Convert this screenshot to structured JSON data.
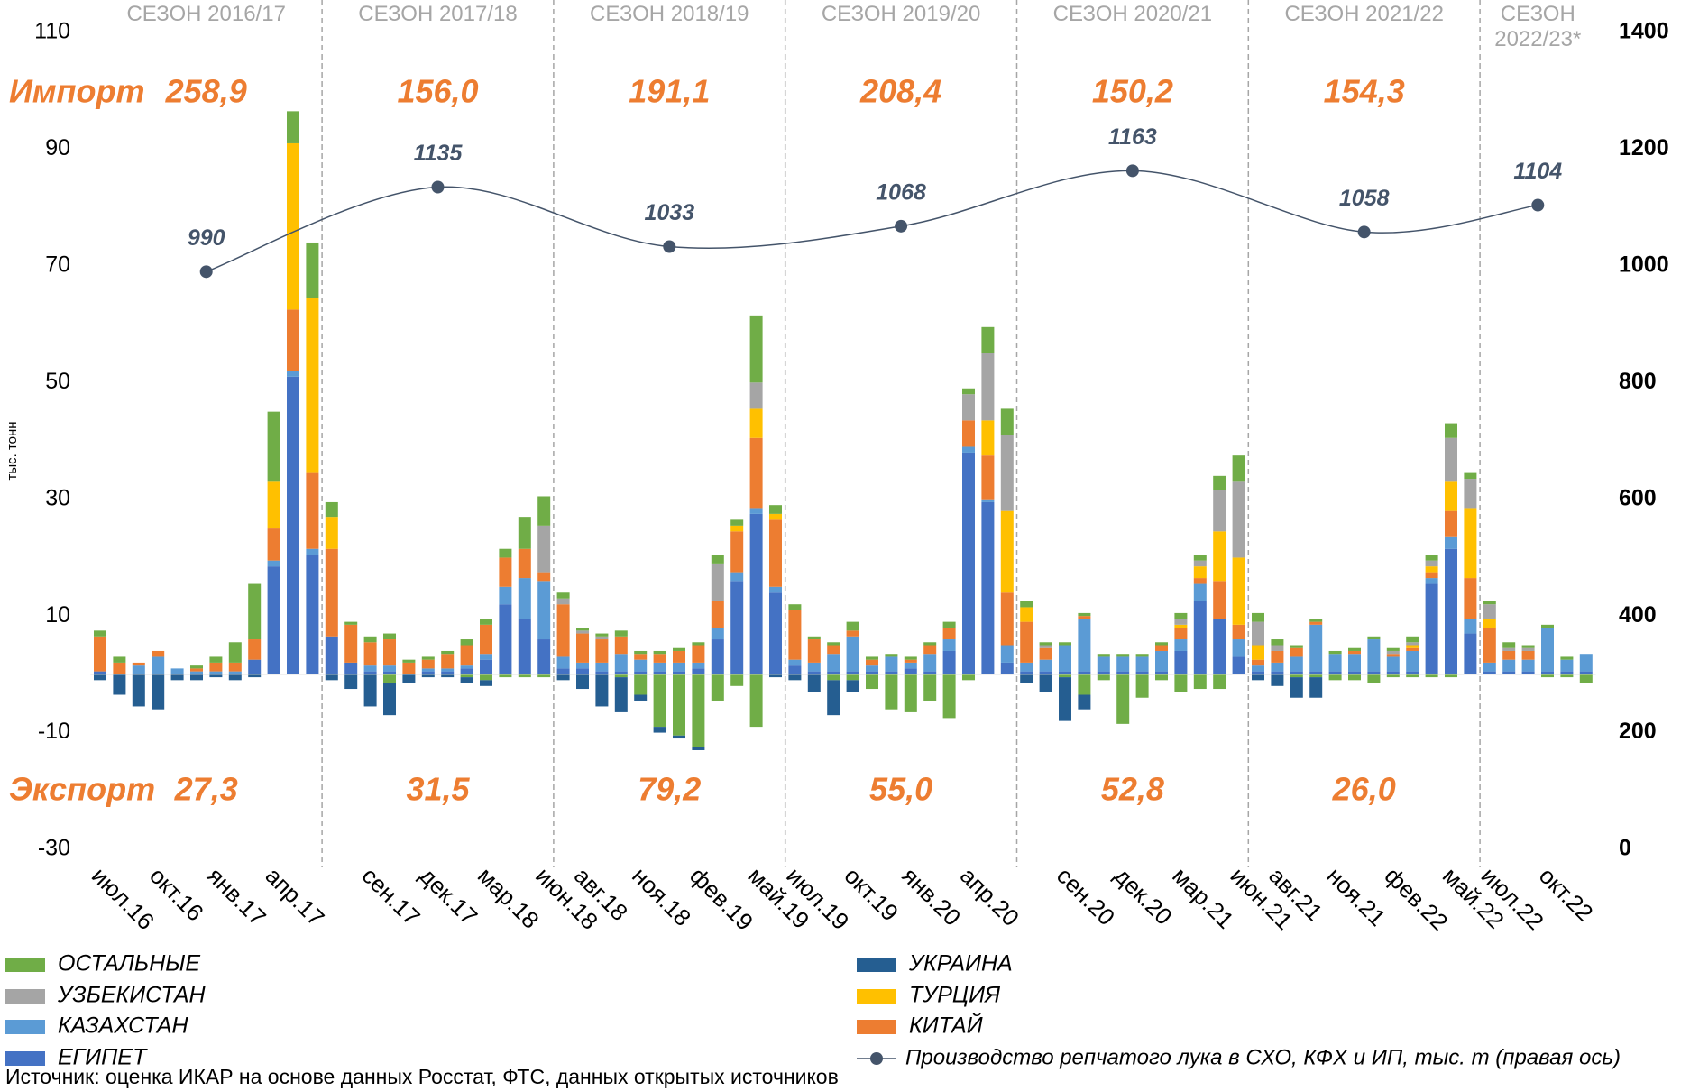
{
  "chart_data": {
    "type": "bar",
    "y_label": "тыс. тонн",
    "import_label": "Импорт",
    "export_label": "Экспорт",
    "source": "Источник: оценка ИКАР на основе данных Росстат, ФТС, данных открытых источников",
    "ylim": [
      -30,
      110
    ],
    "yticks": [
      110,
      90,
      70,
      50,
      30,
      10,
      -10,
      -30
    ],
    "y2lim": [
      0,
      1400
    ],
    "y2ticks": [
      1400,
      1200,
      1000,
      800,
      600,
      400,
      200,
      0
    ],
    "grid": false,
    "categories": [
      "июл.16",
      null,
      null,
      "окт.16",
      null,
      null,
      "янв.17",
      null,
      null,
      "апр.17",
      null,
      null,
      null,
      null,
      "сен.17",
      null,
      null,
      "дек.17",
      null,
      null,
      "мар.18",
      null,
      null,
      "июн.18",
      null,
      "авг.18",
      null,
      null,
      "ноя.18",
      null,
      null,
      "фев.19",
      null,
      null,
      "май.19",
      null,
      "июл.19",
      null,
      null,
      "окт.19",
      null,
      null,
      "янв.20",
      null,
      null,
      "апр.20",
      null,
      null,
      null,
      null,
      "сен.20",
      null,
      null,
      "дек.20",
      null,
      null,
      "мар.21",
      null,
      null,
      "июн.21",
      null,
      "авг.21",
      null,
      null,
      "ноя.21",
      null,
      null,
      "фев.22",
      null,
      null,
      "май.22",
      null,
      "июл.22",
      null,
      null,
      "окт.22",
      null,
      null
    ],
    "series": [
      {
        "name": "ОСТАЛЬНЫЕ",
        "color": "#70ad47",
        "values": [
          1,
          1,
          0,
          0,
          0,
          0.5,
          1,
          3.5,
          9.5,
          12,
          5.5,
          9.5,
          2.5,
          0.5,
          1,
          1,
          0.5,
          0.5,
          0.5,
          1,
          1,
          1.5,
          5.5,
          5,
          1,
          0.5,
          0.5,
          1,
          0.5,
          0.5,
          0.5,
          0.5,
          1.5,
          1,
          11.5,
          1.5,
          1,
          0.5,
          0.5,
          1.5,
          0.5,
          0.5,
          0.5,
          0.5,
          1,
          1,
          4.5,
          4.5,
          1,
          0.5,
          0.5,
          0.5,
          0.5,
          0.5,
          0.5,
          0.5,
          1,
          1,
          2.5,
          4.5,
          1.5,
          1,
          0.5,
          0.5,
          0.5,
          0.5,
          0.5,
          0.5,
          1,
          1,
          2.5,
          1,
          0.5,
          1,
          0.5,
          0.5,
          0.5,
          0
        ],
        "export_values": [
          0,
          0,
          0,
          0,
          0,
          0,
          0,
          0,
          0,
          0,
          0,
          0,
          0,
          0,
          0,
          -1.5,
          0,
          0,
          0,
          -0.5,
          -1,
          -0.5,
          -0.5,
          -0.5,
          0,
          0,
          0,
          -0.5,
          -3.5,
          -9,
          -10.5,
          -12.5,
          -4.5,
          -2,
          -9,
          0,
          0,
          0,
          -1,
          -1,
          -2.5,
          -6,
          -6.5,
          -4.5,
          -7.5,
          -1,
          0,
          0,
          0,
          0,
          -0.5,
          -3.5,
          -1,
          -8.5,
          -4,
          -1,
          -3,
          -2.5,
          -2.5,
          0,
          0,
          0,
          -0.5,
          -0.5,
          -1,
          -1,
          -1.5,
          -0.5,
          -0.5,
          -0.5,
          -0.5,
          0,
          0,
          0,
          0,
          -0.5,
          -0.5,
          -1.5
        ]
      },
      {
        "name": "УЗБЕКИСТАН",
        "color": "#a5a5a5",
        "values": [
          0,
          0,
          0,
          0,
          0,
          0,
          0,
          0,
          0,
          0,
          0,
          0,
          0,
          0,
          0,
          0,
          0,
          0,
          0,
          0,
          0,
          0,
          0,
          8,
          1,
          0.5,
          0.5,
          0,
          0,
          0,
          0,
          0,
          6.5,
          0,
          4.5,
          0,
          0,
          0,
          0,
          0,
          0,
          0,
          0,
          0,
          0,
          4.5,
          11.5,
          13,
          0,
          0.5,
          0,
          0,
          0,
          0,
          0,
          0,
          1,
          1,
          7,
          13,
          4,
          1,
          0,
          0,
          0,
          0,
          0,
          0.5,
          0.5,
          1,
          7.5,
          5,
          2.5,
          0.5,
          0.5,
          0,
          0,
          0
        ]
      },
      {
        "name": "КАЗАХСТАН",
        "color": "#5b9bd5",
        "values": [
          0,
          0,
          1.5,
          3,
          1,
          0.5,
          0.5,
          0.5,
          0,
          1,
          1,
          1,
          0,
          0,
          1,
          1,
          0,
          0.5,
          0.5,
          0.5,
          1,
          3,
          7,
          10,
          2,
          1,
          1.5,
          3,
          2,
          1.5,
          1.5,
          1,
          2,
          1.5,
          1,
          1,
          1,
          1.5,
          3,
          6,
          1,
          2.5,
          1,
          3,
          2,
          1,
          0.5,
          3,
          1.5,
          2,
          4.5,
          9,
          2.5,
          2.5,
          2.5,
          3.5,
          2,
          3,
          0,
          3,
          1,
          1.5,
          2.5,
          8,
          3,
          3,
          5.5,
          2.5,
          3.5,
          1,
          2,
          2.5,
          1.5,
          2,
          2,
          7.5,
          2,
          3
        ]
      },
      {
        "name": "ЕГИПЕТ",
        "color": "#4472c4",
        "values": [
          0.5,
          0,
          0,
          0,
          0,
          0,
          0,
          0,
          2.5,
          18.5,
          51,
          20.5,
          6.5,
          2,
          0.5,
          0.5,
          0,
          0.5,
          0.5,
          1,
          2.5,
          12,
          9.5,
          6,
          1,
          1,
          0.5,
          0.5,
          0.5,
          0.5,
          0.5,
          1,
          6,
          16,
          27.5,
          14,
          1.5,
          0.5,
          0.5,
          0.5,
          0.5,
          0.5,
          1,
          0.5,
          4,
          38,
          29.5,
          2,
          0.5,
          0.5,
          0.5,
          0.5,
          0.5,
          0.5,
          0.5,
          0.5,
          4,
          12.5,
          9.5,
          3,
          0.5,
          0.5,
          0.5,
          0.5,
          0.5,
          0.5,
          0.5,
          0.5,
          0.5,
          15.5,
          21.5,
          7,
          0.5,
          0.5,
          0.5,
          0.5,
          0.5,
          0.5
        ]
      },
      {
        "name": "УКРАИНА",
        "color": "#255e91",
        "export_values": [
          -1,
          -3.5,
          -5.5,
          -6,
          -1,
          -1,
          -0.5,
          -1,
          -0.5,
          0,
          0,
          0,
          -1,
          -2.5,
          -5.5,
          -5.5,
          -1.5,
          -0.5,
          -0.5,
          -1,
          -1,
          0,
          0,
          0,
          -1,
          -2.5,
          -5.5,
          -6,
          -1,
          -1,
          -0.5,
          -0.5,
          0,
          0,
          0,
          -0.5,
          -1,
          -3,
          -6,
          -2,
          0,
          0,
          0,
          0,
          0,
          0,
          0,
          0,
          -1.5,
          -3,
          -7.5,
          -2.5,
          0,
          0,
          0,
          0,
          0,
          0,
          0,
          0,
          -1,
          -2,
          -3.5,
          -3.5,
          0,
          0,
          0,
          0,
          0,
          0,
          0,
          0,
          0,
          0,
          0,
          0,
          0,
          0
        ]
      },
      {
        "name": "ТУРЦИЯ",
        "color": "#ffc000",
        "values": [
          0,
          0,
          0,
          0,
          0,
          0,
          0,
          0,
          0,
          8,
          28.5,
          30,
          5.5,
          0,
          0,
          0,
          0,
          0,
          0,
          0,
          0,
          0,
          0,
          0,
          0,
          0,
          0,
          0,
          0,
          0,
          0,
          0,
          0,
          1,
          5,
          1,
          0,
          0,
          0,
          0,
          0,
          0,
          0,
          0,
          0,
          0,
          6,
          14,
          2.5,
          0,
          0,
          0,
          0,
          0,
          0,
          0,
          0.5,
          2,
          8.5,
          11.5,
          2.5,
          0,
          0,
          0,
          0,
          0,
          0,
          0,
          0.5,
          1,
          5,
          12,
          1.5,
          0,
          0,
          0,
          0,
          0
        ]
      },
      {
        "name": "КИТАЙ",
        "color": "#ed7d31",
        "values": [
          6,
          2,
          0.5,
          1,
          0,
          0.5,
          1.5,
          1.5,
          3.5,
          5.5,
          10.5,
          13,
          15,
          6.5,
          4,
          4.5,
          2,
          1.5,
          2.5,
          3.5,
          5,
          5,
          5,
          1.5,
          9,
          5,
          4,
          3,
          1,
          1.5,
          2,
          3,
          4.5,
          7,
          12,
          11.5,
          8.5,
          4,
          1.5,
          1,
          1,
          0,
          0.5,
          1.5,
          2,
          4.5,
          7.5,
          9,
          7,
          2,
          0,
          0.5,
          0,
          0,
          0,
          1,
          2,
          1,
          6.5,
          2.5,
          1,
          2,
          1.5,
          0.5,
          0,
          0.5,
          0,
          0.5,
          0.5,
          1,
          4.5,
          7,
          6,
          1.5,
          1.5,
          0,
          0,
          0
        ]
      }
    ],
    "line": {
      "name": "Производство репчатого лука в СХО, КФХ и ИП, тыс. т (правая ось)",
      "color": "#44546a",
      "axis": "y2",
      "values": [
        990,
        1135,
        1033,
        1068,
        1163,
        1058,
        1104
      ]
    },
    "seasons": [
      {
        "label": "СЕЗОН 2016/17",
        "import": "258,9",
        "export": "27,3"
      },
      {
        "label": "СЕЗОН 2017/18",
        "import": "156,0",
        "export": "31,5"
      },
      {
        "label": "СЕЗОН 2018/19",
        "import": "191,1",
        "export": "79,2"
      },
      {
        "label": "СЕЗОН 2019/20",
        "import": "208,4",
        "export": "55,0"
      },
      {
        "label": "СЕЗОН 2020/21",
        "import": "150,2",
        "export": "52,8"
      },
      {
        "label": "СЕЗОН 2021/22",
        "import": "154,3",
        "export": "26,0"
      },
      {
        "label": "СЕЗОН 2022/23*"
      }
    ]
  }
}
